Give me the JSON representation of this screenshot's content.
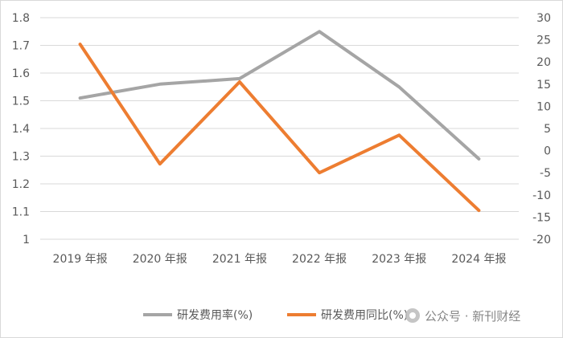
{
  "chart_data": {
    "type": "line",
    "categories": [
      "2019年报",
      "2020年报",
      "2021年报",
      "2022年报",
      "2023年报",
      "2024年报"
    ],
    "category_labels": [
      "2019 年报",
      "2020 年报",
      "2021 年报",
      "2022 年报",
      "2023 年报",
      "2024 年报"
    ],
    "y_left": {
      "min": 1,
      "max": 1.8,
      "step": 0.1,
      "tick_labels": [
        "1",
        "1.1",
        "1.2",
        "1.3",
        "1.4",
        "1.5",
        "1.6",
        "1.7",
        "1.8"
      ]
    },
    "y_right": {
      "min": -20,
      "max": 30,
      "step": 5,
      "tick_labels": [
        "-20",
        "-15",
        "-10",
        "-5",
        "0",
        "5",
        "10",
        "15",
        "20",
        "25",
        "30"
      ]
    },
    "grid": "horizontal",
    "legend_position": "bottom",
    "series": [
      {
        "name": "研发费用率(%)",
        "axis": "left",
        "color": "#a5a5a5",
        "values": [
          1.51,
          1.56,
          1.58,
          1.75,
          1.55,
          1.29
        ]
      },
      {
        "name": "研发费用同比(%)",
        "axis": "right",
        "color": "#ed7d31",
        "values": [
          24.0,
          -3.0,
          15.5,
          -5.0,
          3.5,
          -13.5
        ]
      }
    ]
  },
  "watermark": {
    "text": "公众号 · 新刊财经"
  }
}
